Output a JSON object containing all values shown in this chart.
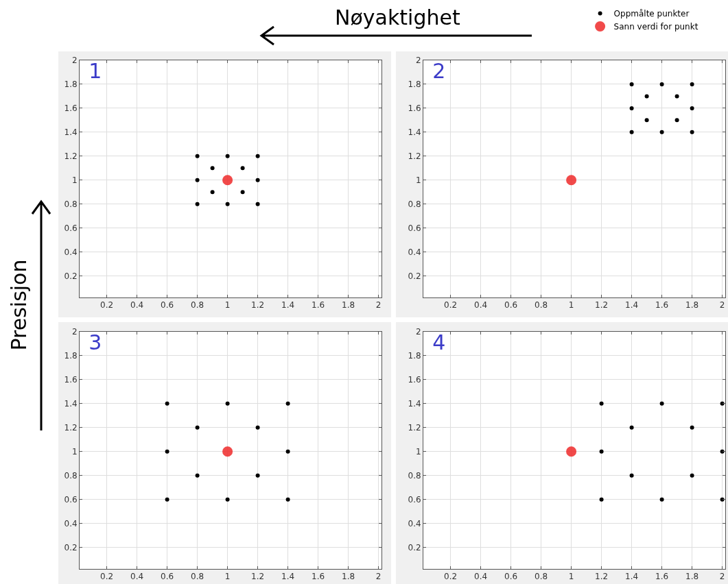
{
  "chart_data": [
    {
      "type": "scatter",
      "title": "1",
      "annotations": [
        "Nøyaktighet",
        "Presisjon"
      ],
      "xlim": [
        0.02,
        2.02
      ],
      "ylim": [
        0.02,
        2
      ],
      "xticks": [
        0.2,
        0.4,
        0.6,
        0.8,
        1,
        1.2,
        1.4,
        1.6,
        1.8,
        2
      ],
      "yticks": [
        0.2,
        0.4,
        0.6,
        0.8,
        1,
        1.2,
        1.4,
        1.6,
        1.8,
        2
      ],
      "grid": true,
      "marker": "circle",
      "series": [
        {
          "color": "#000000",
          "x": [
            0.8,
            1,
            1.2,
            0.9,
            1.1,
            0.8,
            1.2,
            0.9,
            1.1,
            0.8,
            1,
            1.2
          ],
          "values": [
            1.2,
            1.2,
            1.2,
            1.1,
            1.1,
            1,
            1,
            0.9,
            0.9,
            0.8,
            0.8,
            0.8
          ]
        },
        {
          "color": "#ee2a2a",
          "x": [
            1
          ],
          "values": [
            1
          ]
        }
      ]
    },
    {
      "type": "scatter",
      "title": "2",
      "xlim": [
        0.02,
        2.02
      ],
      "ylim": [
        0.02,
        2
      ],
      "xticks": [
        0.2,
        0.4,
        0.6,
        0.8,
        1,
        1.2,
        1.4,
        1.6,
        1.8,
        2
      ],
      "yticks": [
        0.2,
        0.4,
        0.6,
        0.8,
        1,
        1.2,
        1.4,
        1.6,
        1.8,
        2
      ],
      "grid": true,
      "marker": "circle",
      "legend": "top right",
      "series": [
        {
          "name": "Oppmålte punkter",
          "color": "#000000",
          "x": [
            1.4,
            1.6,
            1.8,
            1.5,
            1.7,
            1.4,
            1.8,
            1.5,
            1.7,
            1.4,
            1.6,
            1.8
          ],
          "values": [
            1.8,
            1.8,
            1.8,
            1.7,
            1.7,
            1.6,
            1.6,
            1.5,
            1.5,
            1.4,
            1.4,
            1.4
          ]
        },
        {
          "name": "Sann verdi for punkt",
          "color": "#ee2a2a",
          "x": [
            1
          ],
          "values": [
            1
          ]
        }
      ]
    },
    {
      "type": "scatter",
      "title": "3",
      "xlim": [
        0.02,
        2.02
      ],
      "ylim": [
        0.02,
        2
      ],
      "xticks": [
        0.2,
        0.4,
        0.6,
        0.8,
        1,
        1.2,
        1.4,
        1.6,
        1.8,
        2
      ],
      "yticks": [
        0.2,
        0.4,
        0.6,
        0.8,
        1,
        1.2,
        1.4,
        1.6,
        1.8,
        2
      ],
      "grid": true,
      "marker": "circle",
      "series": [
        {
          "color": "#000000",
          "x": [
            0.6,
            1,
            1.4,
            0.8,
            1.2,
            0.6,
            1.4,
            0.8,
            1.2,
            0.6,
            1,
            1.4
          ],
          "values": [
            1.4,
            1.4,
            1.4,
            1.2,
            1.2,
            1,
            1,
            0.8,
            0.8,
            0.6,
            0.6,
            0.6
          ]
        },
        {
          "color": "#ee2a2a",
          "x": [
            1
          ],
          "values": [
            1
          ]
        }
      ]
    },
    {
      "type": "scatter",
      "title": "4",
      "xlim": [
        0.02,
        2.02
      ],
      "ylim": [
        0.02,
        2
      ],
      "xticks": [
        0.2,
        0.4,
        0.6,
        0.8,
        1,
        1.2,
        1.4,
        1.6,
        1.8,
        2
      ],
      "yticks": [
        0.2,
        0.4,
        0.6,
        0.8,
        1,
        1.2,
        1.4,
        1.6,
        1.8,
        2
      ],
      "grid": true,
      "marker": "circle",
      "series": [
        {
          "color": "#000000",
          "x": [
            1.2,
            1.6,
            2,
            1.4,
            1.8,
            1.2,
            2,
            1.4,
            1.8,
            1.2,
            1.6,
            2
          ],
          "values": [
            1.4,
            1.4,
            1.4,
            1.2,
            1.2,
            1,
            1,
            0.8,
            0.8,
            0.6,
            0.6,
            0.6
          ]
        },
        {
          "color": "#ee2a2a",
          "x": [
            1
          ],
          "values": [
            1
          ]
        }
      ]
    }
  ]
}
